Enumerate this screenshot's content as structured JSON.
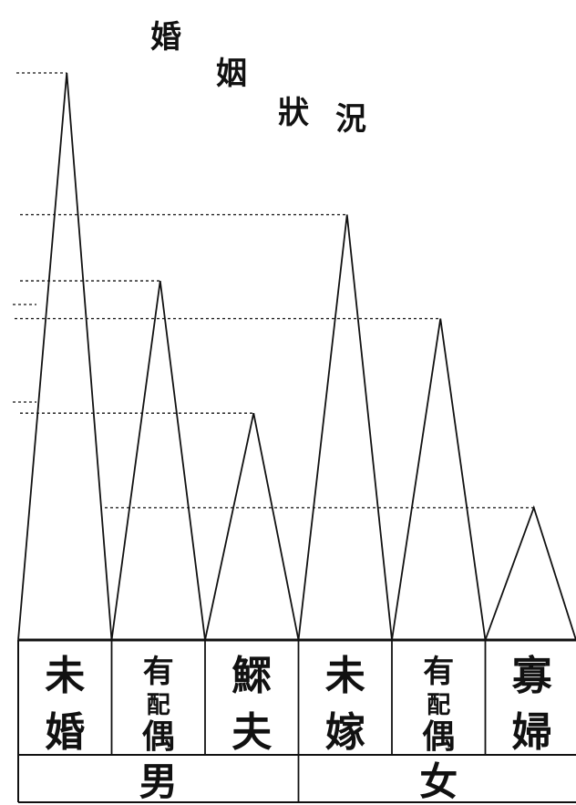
{
  "chart_data": {
    "type": "area",
    "title": "婚姻狀況",
    "categories": [
      "未婚",
      "有配偶",
      "鰥夫",
      "未嫁",
      "有配偶",
      "寡婦"
    ],
    "groups": [
      {
        "label": "男",
        "categories": [
          "未婚",
          "有配偶",
          "鰥夫"
        ]
      },
      {
        "label": "女",
        "categories": [
          "未嫁",
          "有配偶",
          "寡婦"
        ]
      }
    ],
    "values": [
      6,
      3.8,
      2.4,
      4.5,
      3.4,
      1.4
    ],
    "ylim": [
      0,
      6
    ],
    "xlabel": "",
    "ylabel": "",
    "grid": false,
    "reference_lines": "dashed",
    "line_color": "#111111"
  }
}
